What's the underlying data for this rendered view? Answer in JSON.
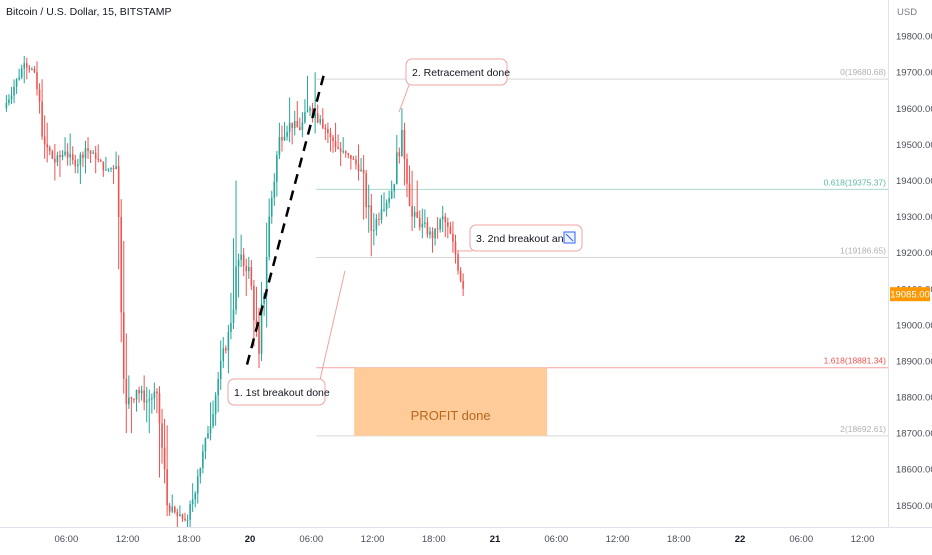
{
  "header": {
    "symbol": "Bitcoin / U.S. Dollar, 15, BITSTAMP"
  },
  "currency": "USD",
  "chart_data": {
    "type": "candlestick",
    "y_axis": {
      "ticks": [
        18500,
        18600,
        18700,
        18800,
        18900,
        19000,
        19100,
        19200,
        19300,
        19400,
        19500,
        19600,
        19700,
        19800
      ],
      "tick_labels": [
        "18500.00",
        "18600.00",
        "18700.00",
        "18800.00",
        "18900.00",
        "19000.00",
        "19100.00",
        "19200.00",
        "19300.00",
        "19400.00",
        "19500.00",
        "19600.00",
        "19700.00",
        "19800.00"
      ],
      "range": [
        18440,
        19900
      ]
    },
    "x_axis": {
      "tick_labels": [
        "06:00",
        "12:00",
        "18:00",
        "20",
        "06:00",
        "12:00",
        "18:00",
        "21",
        "06:00",
        "12:00",
        "18:00",
        "22",
        "06:00",
        "12:00"
      ],
      "tick_hours": [
        6,
        12,
        18,
        24,
        30,
        36,
        42,
        48,
        54,
        60,
        66,
        72,
        78,
        84
      ],
      "range_hours": [
        -0.5,
        86.5
      ]
    },
    "last_price": {
      "value": 19085,
      "label": "19085.00"
    },
    "fib_levels": [
      {
        "ratio": 0,
        "price": 19680.68,
        "label": "0(19680.68)",
        "color": "#b0b0b0"
      },
      {
        "ratio": 0.618,
        "price": 19375.37,
        "label": "0.618(19375.37)",
        "color": "#5fb8a7"
      },
      {
        "ratio": 1,
        "price": 19186.65,
        "label": "1(19186.65)",
        "color": "#b0b0b0"
      },
      {
        "ratio": 1.618,
        "price": 18881.34,
        "label": "1.618(18881.34)",
        "color": "#ef5350"
      },
      {
        "ratio": 2,
        "price": 18692.61,
        "label": "2(18692.61)",
        "color": "#b0b0b0"
      }
    ],
    "trendline": {
      "from": [
        23.7,
        18890
      ],
      "to": [
        31.2,
        19690
      ]
    },
    "profit_zone": {
      "from_hours": 34.2,
      "to_hours": 53.1,
      "top": 18881.34,
      "bottom": 18692.61,
      "label": "PROFIT done"
    },
    "annotations": [
      {
        "text": "1. 1st breakout done",
        "target": [
          33.3,
          19150
        ]
      },
      {
        "text": "2. Retracement done",
        "target": [
          38.6,
          19590
        ]
      },
      {
        "text": "3. 2nd breakout and",
        "target": [
          44.5,
          19205
        ]
      }
    ],
    "candles_hourly": [
      {
        "o": 19600,
        "h": 19680,
        "l": 19590,
        "c": 19660
      },
      {
        "o": 19660,
        "h": 19745,
        "l": 19640,
        "c": 19725
      },
      {
        "o": 19725,
        "h": 19740,
        "l": 19680,
        "c": 19700
      },
      {
        "o": 19700,
        "h": 19730,
        "l": 19460,
        "c": 19500
      },
      {
        "o": 19500,
        "h": 19560,
        "l": 19400,
        "c": 19450
      },
      {
        "o": 19450,
        "h": 19520,
        "l": 19410,
        "c": 19480
      },
      {
        "o": 19480,
        "h": 19530,
        "l": 19420,
        "c": 19440
      },
      {
        "o": 19440,
        "h": 19510,
        "l": 19390,
        "c": 19490
      },
      {
        "o": 19490,
        "h": 19520,
        "l": 19420,
        "c": 19460
      },
      {
        "o": 19460,
        "h": 19500,
        "l": 19410,
        "c": 19430
      },
      {
        "o": 19430,
        "h": 19480,
        "l": 19390,
        "c": 19440
      },
      {
        "o": 19440,
        "h": 19470,
        "l": 18700,
        "c": 18780
      },
      {
        "o": 18780,
        "h": 18860,
        "l": 18700,
        "c": 18820
      },
      {
        "o": 18820,
        "h": 18860,
        "l": 18730,
        "c": 18790
      },
      {
        "o": 18790,
        "h": 18840,
        "l": 18700,
        "c": 18810
      },
      {
        "o": 18810,
        "h": 18830,
        "l": 18470,
        "c": 18500
      },
      {
        "o": 18500,
        "h": 18530,
        "l": 18440,
        "c": 18470
      },
      {
        "o": 18470,
        "h": 18500,
        "l": 18440,
        "c": 18460
      },
      {
        "o": 18460,
        "h": 18600,
        "l": 18440,
        "c": 18580
      },
      {
        "o": 18580,
        "h": 18720,
        "l": 18560,
        "c": 18700
      },
      {
        "o": 18700,
        "h": 18870,
        "l": 18680,
        "c": 18850
      },
      {
        "o": 18850,
        "h": 19000,
        "l": 18820,
        "c": 18980
      },
      {
        "o": 18980,
        "h": 19400,
        "l": 18960,
        "c": 19180
      },
      {
        "o": 19180,
        "h": 19250,
        "l": 19080,
        "c": 19160
      },
      {
        "o": 19160,
        "h": 19180,
        "l": 18880,
        "c": 18920
      },
      {
        "o": 18920,
        "h": 19350,
        "l": 18900,
        "c": 19300
      },
      {
        "o": 19300,
        "h": 19560,
        "l": 19280,
        "c": 19520
      },
      {
        "o": 19520,
        "h": 19630,
        "l": 19480,
        "c": 19560
      },
      {
        "o": 19560,
        "h": 19620,
        "l": 19500,
        "c": 19540
      },
      {
        "o": 19540,
        "h": 19690,
        "l": 19520,
        "c": 19600
      },
      {
        "o": 19600,
        "h": 19700,
        "l": 19530,
        "c": 19570
      },
      {
        "o": 19570,
        "h": 19600,
        "l": 19480,
        "c": 19520
      },
      {
        "o": 19520,
        "h": 19560,
        "l": 19440,
        "c": 19480
      },
      {
        "o": 19480,
        "h": 19520,
        "l": 19430,
        "c": 19460
      },
      {
        "o": 19460,
        "h": 19500,
        "l": 19400,
        "c": 19430
      },
      {
        "o": 19430,
        "h": 19470,
        "l": 19190,
        "c": 19260
      },
      {
        "o": 19260,
        "h": 19360,
        "l": 19220,
        "c": 19320
      },
      {
        "o": 19320,
        "h": 19400,
        "l": 19300,
        "c": 19370
      },
      {
        "o": 19370,
        "h": 19600,
        "l": 19350,
        "c": 19540
      },
      {
        "o": 19540,
        "h": 19560,
        "l": 19260,
        "c": 19300
      },
      {
        "o": 19300,
        "h": 19400,
        "l": 19240,
        "c": 19280
      },
      {
        "o": 19280,
        "h": 19320,
        "l": 19200,
        "c": 19240
      },
      {
        "o": 19240,
        "h": 19330,
        "l": 19220,
        "c": 19300
      },
      {
        "o": 19300,
        "h": 19310,
        "l": 19200,
        "c": 19230
      },
      {
        "o": 19230,
        "h": 19250,
        "l": 19080,
        "c": 19100
      }
    ]
  }
}
